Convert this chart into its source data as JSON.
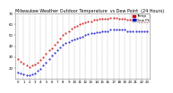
{
  "title": "Milwaukee Weather Outdoor Temperature  vs Dew Point  (24 Hours)",
  "temp_color": "#cc0000",
  "dew_color": "#0000cc",
  "bg_color": "#ffffff",
  "plot_bg": "#ffffff",
  "grid_color": "#aaaaaa",
  "legend_temp": "Temp",
  "legend_dew": "Dew Pt",
  "temp_data": [
    [
      0,
      28
    ],
    [
      0.5,
      26
    ],
    [
      1,
      24
    ],
    [
      1.5,
      22
    ],
    [
      2,
      21
    ],
    [
      2.5,
      22
    ],
    [
      3,
      23
    ],
    [
      3.5,
      25
    ],
    [
      4,
      27
    ],
    [
      4.5,
      30
    ],
    [
      5,
      33
    ],
    [
      5.5,
      36
    ],
    [
      6,
      38
    ],
    [
      6.5,
      41
    ],
    [
      7,
      44
    ],
    [
      7.5,
      47
    ],
    [
      8,
      50
    ],
    [
      8.5,
      52
    ],
    [
      9,
      54
    ],
    [
      9.5,
      56
    ],
    [
      10,
      58
    ],
    [
      10.5,
      59
    ],
    [
      11,
      60
    ],
    [
      11.5,
      61
    ],
    [
      12,
      62
    ],
    [
      12.5,
      63
    ],
    [
      13,
      63
    ],
    [
      13.5,
      64
    ],
    [
      14,
      64
    ],
    [
      14.5,
      65
    ],
    [
      15,
      65
    ],
    [
      15.5,
      65
    ],
    [
      16,
      65
    ],
    [
      16.5,
      66
    ],
    [
      17,
      66
    ],
    [
      17.5,
      66
    ],
    [
      18,
      65
    ],
    [
      18.5,
      65
    ],
    [
      19,
      65
    ],
    [
      19.5,
      64
    ],
    [
      20,
      64
    ],
    [
      20.5,
      64
    ],
    [
      21,
      64
    ],
    [
      21.5,
      63
    ],
    [
      22,
      63
    ],
    [
      22.5,
      63
    ],
    [
      23,
      63
    ]
  ],
  "dew_data": [
    [
      0,
      16
    ],
    [
      0.5,
      15
    ],
    [
      1,
      14
    ],
    [
      1.5,
      13
    ],
    [
      2,
      13
    ],
    [
      2.5,
      14
    ],
    [
      3,
      15
    ],
    [
      3.5,
      17
    ],
    [
      4,
      19
    ],
    [
      4.5,
      22
    ],
    [
      5,
      25
    ],
    [
      5.5,
      28
    ],
    [
      6,
      31
    ],
    [
      6.5,
      34
    ],
    [
      7,
      36
    ],
    [
      7.5,
      39
    ],
    [
      8,
      41
    ],
    [
      8.5,
      43
    ],
    [
      9,
      44
    ],
    [
      9.5,
      45
    ],
    [
      10,
      46
    ],
    [
      10.5,
      47
    ],
    [
      11,
      48
    ],
    [
      11.5,
      49
    ],
    [
      12,
      50
    ],
    [
      12.5,
      51
    ],
    [
      13,
      52
    ],
    [
      13.5,
      52
    ],
    [
      14,
      53
    ],
    [
      14.5,
      53
    ],
    [
      15,
      54
    ],
    [
      15.5,
      54
    ],
    [
      16,
      54
    ],
    [
      16.5,
      55
    ],
    [
      17,
      55
    ],
    [
      17.5,
      55
    ],
    [
      18,
      55
    ],
    [
      18.5,
      55
    ],
    [
      19,
      55
    ],
    [
      19.5,
      54
    ],
    [
      20,
      54
    ],
    [
      20.5,
      54
    ],
    [
      21,
      54
    ],
    [
      21.5,
      54
    ],
    [
      22,
      54
    ],
    [
      22.5,
      54
    ],
    [
      23,
      54
    ]
  ],
  "xlim": [
    -0.5,
    23.5
  ],
  "ylim": [
    10,
    70
  ],
  "xtick_positions": [
    0,
    1,
    2,
    3,
    4,
    5,
    6,
    7,
    8,
    9,
    10,
    11,
    12,
    13,
    14,
    15,
    16,
    17,
    18,
    19,
    20,
    21,
    22,
    23
  ],
  "xtick_labels": [
    "0",
    "1",
    "2",
    "3",
    "4",
    "5",
    "6",
    "7",
    "8",
    "9",
    "10",
    "11",
    "12",
    "13",
    "14",
    "15",
    "16",
    "17",
    "18",
    "19",
    "20",
    "21",
    "22",
    "23"
  ],
  "ytick_positions": [
    20,
    30,
    40,
    50,
    60,
    70
  ],
  "ytick_labels": [
    "20",
    "30",
    "40",
    "50",
    "60",
    "70"
  ],
  "title_fontsize": 3.5,
  "tick_fontsize": 2.8,
  "legend_fontsize": 3.0,
  "marker_size": 0.9,
  "line_width": 0.5
}
